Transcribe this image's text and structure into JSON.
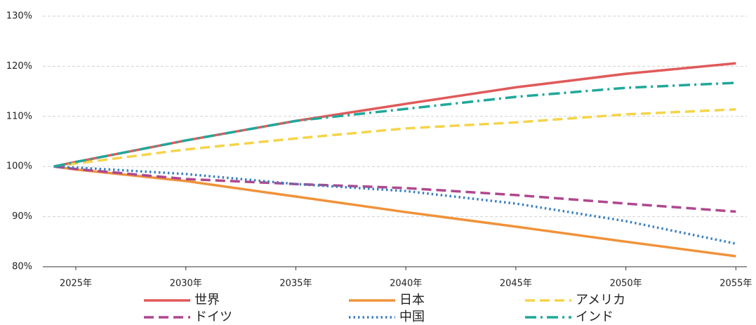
{
  "chart_data": {
    "type": "line",
    "x": [
      2024,
      2025,
      2030,
      2035,
      2040,
      2045,
      2050,
      2055
    ],
    "xlim": [
      2023.5,
      2055.5
    ],
    "xticks": [
      {
        "value": 2025,
        "label": "2025年"
      },
      {
        "value": 2030,
        "label": "2030年"
      },
      {
        "value": 2035,
        "label": "2035年"
      },
      {
        "value": 2040,
        "label": "2040年"
      },
      {
        "value": 2045,
        "label": "2045年"
      },
      {
        "value": 2050,
        "label": "2050年"
      },
      {
        "value": 2055,
        "label": "2055年"
      }
    ],
    "ylim": [
      80,
      130
    ],
    "yticks": [
      {
        "value": 80,
        "label": "80%"
      },
      {
        "value": 90,
        "label": "90%"
      },
      {
        "value": 100,
        "label": "100%"
      },
      {
        "value": 110,
        "label": "110%"
      },
      {
        "value": 120,
        "label": "120%"
      },
      {
        "value": 130,
        "label": "130%"
      }
    ],
    "grid": true,
    "legend": "bottom",
    "series": [
      {
        "name": "世界",
        "color": "#e05a5a",
        "dash": "solid",
        "values": [
          100,
          100.9,
          105.2,
          109.1,
          112.5,
          115.8,
          118.5,
          120.6
        ]
      },
      {
        "name": "日本",
        "color": "#f0923a",
        "dash": "solid",
        "values": [
          100,
          99.4,
          97.1,
          94.0,
          90.9,
          88.0,
          85.0,
          82.1
        ]
      },
      {
        "name": "アメリカ",
        "color": "#f5d44a",
        "dash": "dashed",
        "values": [
          100,
          100.6,
          103.4,
          105.6,
          107.6,
          108.8,
          110.4,
          111.4
        ]
      },
      {
        "name": "ドイツ",
        "color": "#b0478e",
        "dash": "dashed",
        "values": [
          100,
          99.5,
          97.5,
          96.5,
          95.7,
          94.3,
          92.6,
          91.0
        ]
      },
      {
        "name": "中国",
        "color": "#3a7fc0",
        "dash": "dotted",
        "values": [
          100,
          99.8,
          98.5,
          96.5,
          95.1,
          92.6,
          89.1,
          84.6
        ]
      },
      {
        "name": "インド",
        "color": "#1fa89a",
        "dash": "dashdot",
        "values": [
          100,
          100.9,
          105.2,
          109.1,
          111.5,
          113.9,
          115.7,
          116.7
        ]
      }
    ]
  }
}
